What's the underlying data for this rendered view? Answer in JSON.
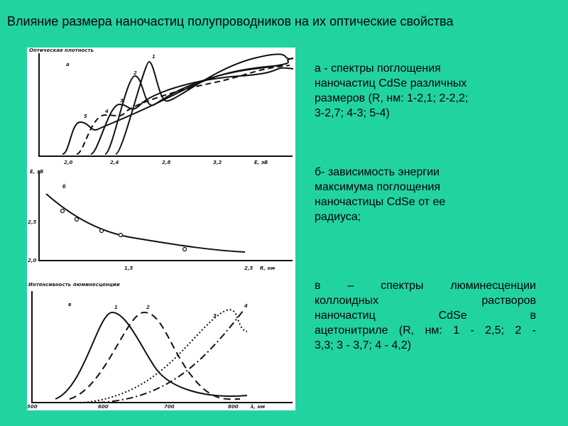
{
  "title": "Влияние размера наночастиц полупроводников на их оптические свойства",
  "blocks": [
    {
      "lines": [
        "а - спектры поглощения",
        "наночастиц  CdSe различных",
        "размеров (R, нм: 1-2,1; 2-2,2;",
        "3-2,7; 4-3; 5-4)"
      ],
      "justify": false
    },
    {
      "lines": [
        "б- зависимость  энергии",
        "максимума  поглощения",
        "наночастицы  CdSe от ее",
        "радиуса;"
      ],
      "justify": false
    },
    {
      "lines": [
        "в – спектры люминесценции",
        "коллоидных растворов",
        "наночастиц CdSe в",
        "ацетонитриле (R, нм: 1 - 2,5; 2 -",
        "3,3; 3 - 3,7; 4 - 4,2)"
      ],
      "justify": true
    }
  ],
  "figure": {
    "panels": [
      {
        "y_label": "Оптическая плотность",
        "tag": "а",
        "x_ticks": [
          "2,0",
          "2,4",
          "2,8",
          "3,2"
        ],
        "x_label": "Е, эВ",
        "curve_labels": [
          "1",
          "2",
          "3",
          "4",
          "5"
        ]
      },
      {
        "y_label": "Е, эВ",
        "tag": "б",
        "y_ticks": [
          "2,5",
          "2,0"
        ],
        "x_ticks": [
          "1,5",
          "2,5"
        ],
        "x_label": "R, нм"
      },
      {
        "y_label": "Интенсивность люминесценции",
        "tag": "в",
        "x_ticks": [
          "500",
          "600",
          "700",
          "800"
        ],
        "x_label": "λ, нм",
        "curve_labels": [
          "1",
          "2",
          "3",
          "4"
        ]
      }
    ]
  }
}
